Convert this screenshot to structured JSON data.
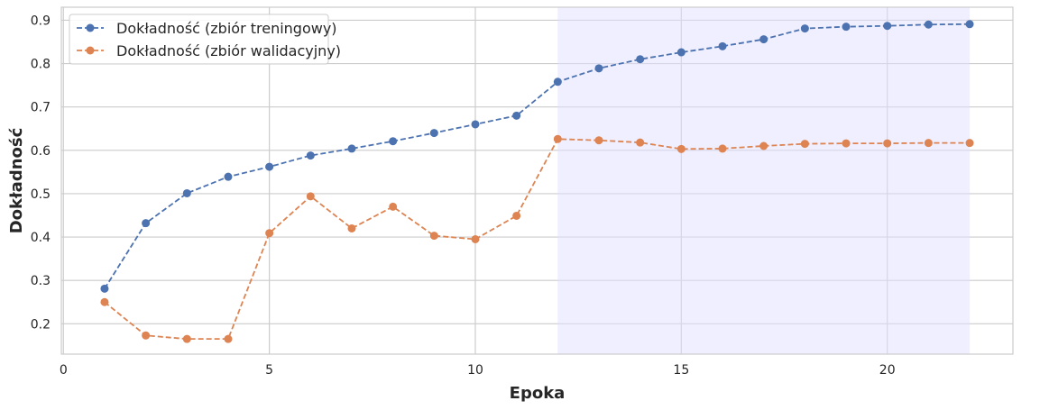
{
  "chart_data": {
    "type": "line",
    "x": [
      1,
      2,
      3,
      4,
      5,
      6,
      7,
      8,
      9,
      10,
      11,
      12,
      13,
      14,
      15,
      16,
      17,
      18,
      19,
      20,
      21,
      22
    ],
    "series": [
      {
        "name": "Dokładność (zbiór treningowy)",
        "color": "#4c72b0",
        "values": [
          0.281,
          0.432,
          0.501,
          0.539,
          0.562,
          0.588,
          0.604,
          0.621,
          0.64,
          0.66,
          0.68,
          0.758,
          0.789,
          0.81,
          0.826,
          0.84,
          0.856,
          0.881,
          0.885,
          0.887,
          0.89,
          0.891
        ]
      },
      {
        "name": "Dokładność (zbiór walidacyjny)",
        "color": "#dd8452",
        "values": [
          0.25,
          0.173,
          0.165,
          0.165,
          0.409,
          0.494,
          0.42,
          0.47,
          0.403,
          0.395,
          0.449,
          0.626,
          0.623,
          0.618,
          0.603,
          0.604,
          0.61,
          0.615,
          0.616,
          0.616,
          0.617,
          0.617
        ]
      }
    ],
    "highlight_range": {
      "from": 12,
      "to": 22,
      "color": "#e0e0ff"
    },
    "xlabel": "Epoka",
    "ylabel": "Dokładność",
    "xlim": [
      -0.05,
      23.05
    ],
    "ylim": [
      0.13,
      0.93
    ],
    "xticks": [
      0,
      5,
      10,
      15,
      20
    ],
    "yticks": [
      0.2,
      0.3,
      0.4,
      0.5,
      0.6,
      0.7,
      0.8,
      0.9
    ],
    "grid": true,
    "legend_position": "top-left",
    "line_style": "dashed",
    "marker": "circle"
  }
}
